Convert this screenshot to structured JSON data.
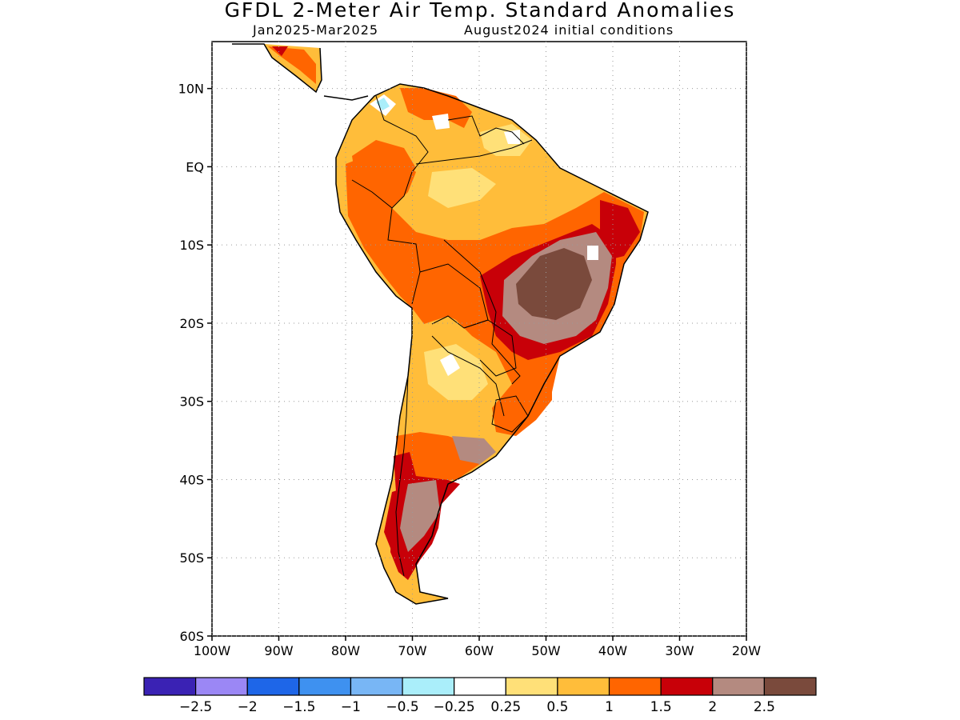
{
  "title": "GFDL 2-Meter Air Temp. Standard Anomalies",
  "subtitle_left": "Jan2025-Mar2025",
  "subtitle_right": "August2024 initial conditions",
  "map": {
    "lat_labels": [
      "10N",
      "EQ",
      "10S",
      "20S",
      "30S",
      "40S",
      "50S",
      "60S"
    ],
    "lat_values": [
      10,
      0,
      -10,
      -20,
      -30,
      -40,
      -50,
      -60
    ],
    "lon_labels": [
      "100W",
      "90W",
      "80W",
      "70W",
      "60W",
      "50W",
      "40W",
      "30W",
      "20W"
    ],
    "lon_values": [
      -100,
      -90,
      -80,
      -70,
      -60,
      -50,
      -40,
      -30,
      -20
    ],
    "lat_range": [
      -60,
      16
    ],
    "lon_range": [
      -100,
      -20
    ],
    "grid": "dotted"
  },
  "colorbar": {
    "labels": [
      "-2.5",
      "-2",
      "-1.5",
      "-1",
      "-0.5",
      "-0.25",
      "0.25",
      "0.5",
      "1",
      "1.5",
      "2",
      "2.5"
    ],
    "colors": [
      "#3a22b4",
      "#9b87f5",
      "#1e66e8",
      "#3e91f0",
      "#78b6f5",
      "#aaeefa",
      "#ffffff",
      "#ffe078",
      "#ffbd3a",
      "#ff6500",
      "#c80008",
      "#b48a80",
      "#7a4a3c"
    ]
  }
}
